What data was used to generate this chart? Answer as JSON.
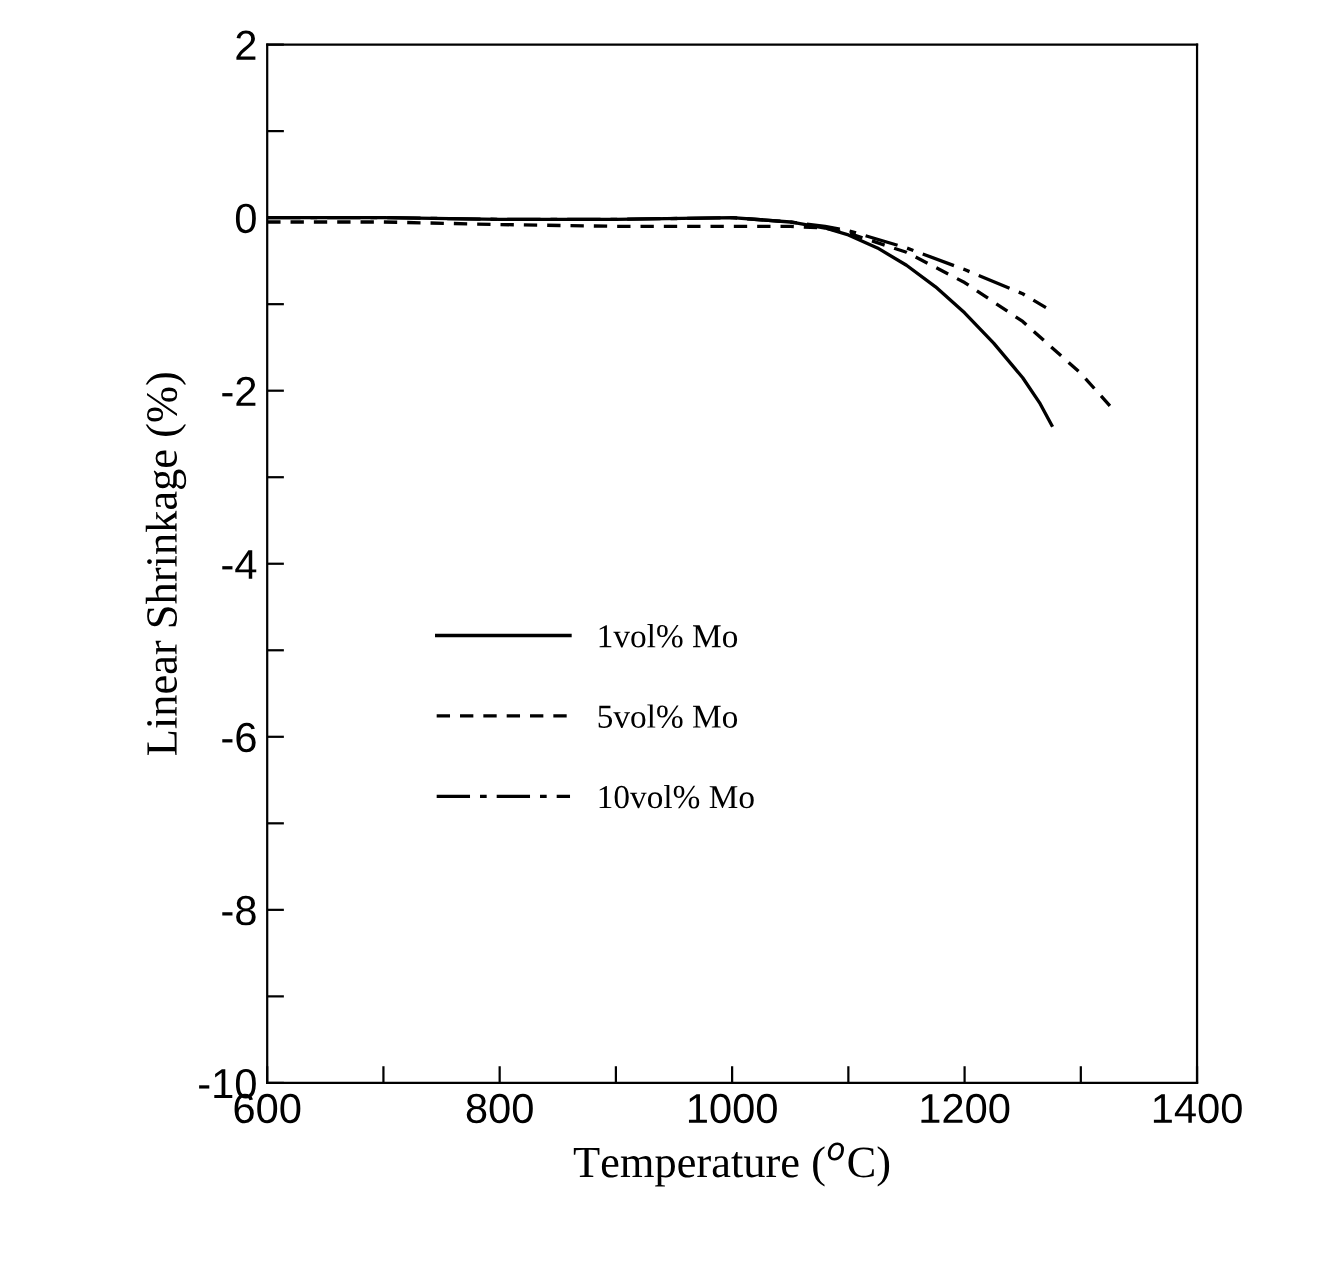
{
  "chart_data": {
    "type": "line",
    "xlabel": "Temperature ($^{o}$C)",
    "ylabel": "Linear Shrinkage (%)",
    "xlim": [
      600,
      1400
    ],
    "ylim": [
      -10,
      2
    ],
    "xticks": [
      600,
      {
        "value": 700,
        "label": null
      },
      800,
      {
        "value": 900,
        "label": null
      },
      1000,
      {
        "value": 1100,
        "label": null
      },
      1200,
      {
        "value": 1300,
        "label": null
      },
      1400
    ],
    "yticks": [
      -10,
      {
        "value": -9,
        "label": null
      },
      -8,
      {
        "value": -7,
        "label": null
      },
      -6,
      {
        "value": -5,
        "label": null
      },
      -4,
      {
        "value": -3,
        "label": null
      },
      -2,
      {
        "value": -1,
        "label": null
      },
      0,
      {
        "value": 1,
        "label": null
      },
      2
    ],
    "grid": false,
    "legend": "center left",
    "marker": "none",
    "series": [
      {
        "name": "1vol% Mo",
        "color": "#000000",
        "line_style": "solid",
        "x": [
          600,
          700,
          800,
          900,
          1000,
          1050,
          1080,
          1100,
          1125,
          1150,
          1175,
          1200,
          1225,
          1250,
          1265,
          1275
        ],
        "values": [
          0,
          0,
          -0.02,
          -0.02,
          0,
          -0.05,
          -0.12,
          -0.2,
          -0.35,
          -0.55,
          -0.8,
          -1.1,
          -1.45,
          -1.85,
          -2.15,
          -2.4
        ]
      },
      {
        "name": "5vol% Mo",
        "color": "#000000",
        "line_style": "dashed",
        "x": [
          600,
          700,
          800,
          900,
          1000,
          1050,
          1080,
          1100,
          1150,
          1200,
          1250,
          1300,
          1330
        ],
        "values": [
          -0.05,
          -0.05,
          -0.08,
          -0.1,
          -0.1,
          -0.1,
          -0.12,
          -0.18,
          -0.4,
          -0.75,
          -1.2,
          -1.8,
          -2.25
        ]
      },
      {
        "name": "10vol% Mo",
        "color": "#000000",
        "line_style": "dashdot",
        "x": [
          600,
          700,
          800,
          900,
          1000,
          1050,
          1080,
          1100,
          1150,
          1200,
          1250,
          1270
        ],
        "values": [
          0,
          0,
          -0.02,
          -0.02,
          0,
          -0.05,
          -0.1,
          -0.15,
          -0.35,
          -0.6,
          -0.88,
          -1.04
        ]
      }
    ]
  }
}
